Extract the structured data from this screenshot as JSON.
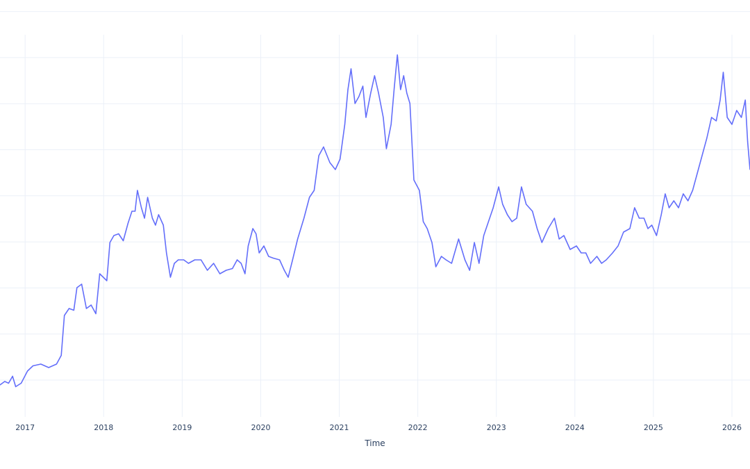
{
  "chart_data": {
    "type": "line",
    "title": "",
    "xlabel": "Time",
    "ylabel": "",
    "x_tick_labels": [
      "2017",
      "2018",
      "2019",
      "2020",
      "2021",
      "2022",
      "2023",
      "2024",
      "2025",
      "2026"
    ],
    "x_range": [
      2016.68,
      2026.23
    ],
    "y_range": [
      0,
      100
    ],
    "y_tick_labels_visible": false,
    "grid": true,
    "legend": "none",
    "series": [
      {
        "color": "#636efa",
        "points": [
          [
            2016.68,
            5
          ],
          [
            2016.74,
            6
          ],
          [
            2016.79,
            5.5
          ],
          [
            2016.84,
            7.5
          ],
          [
            2016.88,
            4.5
          ],
          [
            2016.95,
            5.5
          ],
          [
            2017.03,
            9
          ],
          [
            2017.1,
            10.5
          ],
          [
            2017.2,
            11
          ],
          [
            2017.3,
            10
          ],
          [
            2017.4,
            11
          ],
          [
            2017.46,
            13.5
          ],
          [
            2017.5,
            25
          ],
          [
            2017.56,
            27
          ],
          [
            2017.62,
            26.5
          ],
          [
            2017.66,
            33
          ],
          [
            2017.72,
            34
          ],
          [
            2017.78,
            27
          ],
          [
            2017.84,
            28
          ],
          [
            2017.9,
            25.5
          ],
          [
            2017.95,
            37
          ],
          [
            2018.04,
            35
          ],
          [
            2018.08,
            46
          ],
          [
            2018.13,
            48
          ],
          [
            2018.19,
            48.5
          ],
          [
            2018.25,
            46.5
          ],
          [
            2018.31,
            51.5
          ],
          [
            2018.36,
            55
          ],
          [
            2018.4,
            55
          ],
          [
            2018.43,
            61
          ],
          [
            2018.48,
            56
          ],
          [
            2018.52,
            53
          ],
          [
            2018.56,
            59
          ],
          [
            2018.62,
            53
          ],
          [
            2018.66,
            51
          ],
          [
            2018.7,
            54
          ],
          [
            2018.76,
            51
          ],
          [
            2018.8,
            43
          ],
          [
            2018.85,
            36
          ],
          [
            2018.9,
            40
          ],
          [
            2018.95,
            41
          ],
          [
            2019.02,
            41
          ],
          [
            2019.08,
            40
          ],
          [
            2019.16,
            41
          ],
          [
            2019.24,
            41
          ],
          [
            2019.32,
            38
          ],
          [
            2019.4,
            40
          ],
          [
            2019.48,
            37
          ],
          [
            2019.56,
            38
          ],
          [
            2019.64,
            38.5
          ],
          [
            2019.7,
            41
          ],
          [
            2019.75,
            40
          ],
          [
            2019.8,
            37
          ],
          [
            2019.84,
            45
          ],
          [
            2019.9,
            50
          ],
          [
            2019.94,
            48.5
          ],
          [
            2019.98,
            43
          ],
          [
            2020.04,
            45
          ],
          [
            2020.1,
            42
          ],
          [
            2020.16,
            41.5
          ],
          [
            2020.24,
            41
          ],
          [
            2020.3,
            38
          ],
          [
            2020.35,
            36
          ],
          [
            2020.4,
            40.5
          ],
          [
            2020.47,
            47
          ],
          [
            2020.55,
            53
          ],
          [
            2020.62,
            59
          ],
          [
            2020.68,
            61
          ],
          [
            2020.74,
            71
          ],
          [
            2020.8,
            73.5
          ],
          [
            2020.88,
            69
          ],
          [
            2020.95,
            67
          ],
          [
            2021.01,
            70
          ],
          [
            2021.07,
            80
          ],
          [
            2021.11,
            90
          ],
          [
            2021.15,
            96
          ],
          [
            2021.2,
            86
          ],
          [
            2021.25,
            88
          ],
          [
            2021.3,
            91
          ],
          [
            2021.34,
            82
          ],
          [
            2021.4,
            89
          ],
          [
            2021.45,
            94
          ],
          [
            2021.5,
            89
          ],
          [
            2021.56,
            82
          ],
          [
            2021.6,
            73
          ],
          [
            2021.66,
            80
          ],
          [
            2021.7,
            90.5
          ],
          [
            2021.74,
            100
          ],
          [
            2021.78,
            90
          ],
          [
            2021.82,
            94
          ],
          [
            2021.86,
            89
          ],
          [
            2021.9,
            86
          ],
          [
            2021.95,
            64
          ],
          [
            2022.02,
            61
          ],
          [
            2022.07,
            52
          ],
          [
            2022.12,
            50
          ],
          [
            2022.18,
            46
          ],
          [
            2022.23,
            39
          ],
          [
            2022.3,
            42
          ],
          [
            2022.36,
            41
          ],
          [
            2022.43,
            40
          ],
          [
            2022.52,
            47
          ],
          [
            2022.6,
            41
          ],
          [
            2022.66,
            38
          ],
          [
            2022.72,
            46
          ],
          [
            2022.78,
            40
          ],
          [
            2022.84,
            48
          ],
          [
            2022.9,
            52
          ],
          [
            2022.96,
            56
          ],
          [
            2023.03,
            62
          ],
          [
            2023.08,
            57
          ],
          [
            2023.14,
            54
          ],
          [
            2023.2,
            52
          ],
          [
            2023.26,
            53
          ],
          [
            2023.32,
            62
          ],
          [
            2023.38,
            57
          ],
          [
            2023.46,
            55
          ],
          [
            2023.52,
            50
          ],
          [
            2023.58,
            46
          ],
          [
            2023.66,
            50
          ],
          [
            2023.74,
            53
          ],
          [
            2023.8,
            47
          ],
          [
            2023.86,
            48
          ],
          [
            2023.94,
            44
          ],
          [
            2024.02,
            45
          ],
          [
            2024.08,
            43
          ],
          [
            2024.14,
            43
          ],
          [
            2024.2,
            40
          ],
          [
            2024.28,
            42
          ],
          [
            2024.34,
            40
          ],
          [
            2024.4,
            41
          ],
          [
            2024.48,
            43
          ],
          [
            2024.55,
            45
          ],
          [
            2024.62,
            49
          ],
          [
            2024.7,
            50
          ],
          [
            2024.76,
            56
          ],
          [
            2024.82,
            53
          ],
          [
            2024.88,
            53
          ],
          [
            2024.93,
            50
          ],
          [
            2024.98,
            51
          ],
          [
            2025.04,
            48
          ],
          [
            2025.1,
            54
          ],
          [
            2025.15,
            60
          ],
          [
            2025.2,
            56
          ],
          [
            2025.26,
            58
          ],
          [
            2025.32,
            56
          ],
          [
            2025.38,
            60
          ],
          [
            2025.44,
            58
          ],
          [
            2025.5,
            61
          ],
          [
            2025.56,
            66
          ],
          [
            2025.62,
            71
          ],
          [
            2025.68,
            76
          ],
          [
            2025.74,
            82
          ],
          [
            2025.8,
            81
          ],
          [
            2025.85,
            87
          ],
          [
            2025.89,
            95
          ],
          [
            2025.94,
            82
          ],
          [
            2026.0,
            80
          ],
          [
            2026.06,
            84
          ],
          [
            2026.12,
            82
          ],
          [
            2026.17,
            87
          ],
          [
            2026.2,
            75
          ],
          [
            2026.23,
            67
          ]
        ]
      }
    ]
  }
}
